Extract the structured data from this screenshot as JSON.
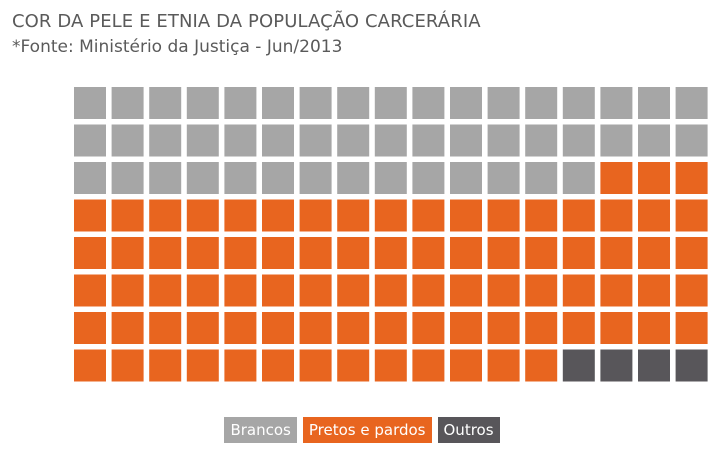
{
  "title": "COR DA PELE E ETNIA DA POPULAÇÃO CARCERÁRIA",
  "subtitle": "*Fonte: Ministério da Justiça - Jun/2013",
  "chart_data": {
    "type": "waffle",
    "grid": {
      "rows": 8,
      "cols": 17,
      "total_cells": 136
    },
    "fill_order": "row-major from top-left",
    "categories": [
      "Brancos",
      "Pretos e pardos",
      "Outros"
    ],
    "values": [
      48,
      84,
      4
    ],
    "colors": [
      "#a6a6a6",
      "#e8651f",
      "#58565a"
    ],
    "legend_position": "bottom-center"
  },
  "legend": [
    {
      "label": "Brancos",
      "color": "#a6a6a6"
    },
    {
      "label": "Pretos e pardos",
      "color": "#e8651f"
    },
    {
      "label": "Outros",
      "color": "#58565a"
    }
  ]
}
